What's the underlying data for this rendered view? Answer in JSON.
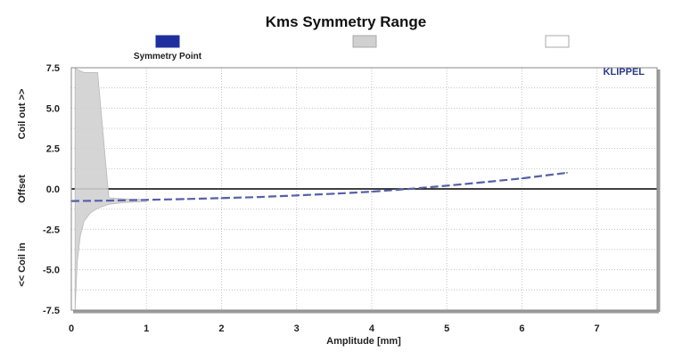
{
  "chart_data": {
    "type": "line",
    "title": "Kms Symmetry Range",
    "xlabel": "Amplitude [mm]",
    "ylabel_top": "Coil out >>",
    "ylabel_mid": "Offset",
    "ylabel_bottom": "<< Coil in",
    "brand": "KLIPPEL",
    "xlim": [
      0,
      7.8
    ],
    "ylim": [
      -7.5,
      7.5
    ],
    "x_ticks": [
      "0",
      "1",
      "2",
      "3",
      "4",
      "5",
      "6",
      "7"
    ],
    "y_ticks": [
      "7.5",
      "5.0",
      "2.5",
      "0.0",
      "-2.5",
      "-5.0",
      "-7.5"
    ],
    "grid": true,
    "legend_position": "top-center",
    "legend": [
      {
        "name": "Symmetry Point",
        "color": "#1f2f9e",
        "kind": "solid"
      },
      {
        "name": "",
        "color": "#d0d0d0",
        "kind": "band"
      },
      {
        "name": "",
        "color": "#ffffff",
        "kind": "empty"
      }
    ],
    "series": [
      {
        "name": "Symmetry Point",
        "color": "#5560a8",
        "x": [
          0.0,
          0.5,
          1.0,
          1.5,
          2.0,
          2.5,
          3.0,
          3.5,
          4.0,
          4.5,
          5.0,
          5.5,
          6.0,
          6.6
        ],
        "y": [
          -0.75,
          -0.72,
          -0.68,
          -0.63,
          -0.57,
          -0.5,
          -0.4,
          -0.3,
          -0.17,
          0.0,
          0.2,
          0.42,
          0.65,
          1.0
        ]
      }
    ],
    "band": {
      "color": "#d0d0d0",
      "x": [
        0.05,
        0.08,
        0.12,
        0.17,
        0.25,
        0.35,
        0.5,
        0.7,
        1.0
      ],
      "upper": [
        7.5,
        7.4,
        7.3,
        7.2,
        7.2,
        7.2,
        -0.55,
        -0.62,
        -0.66
      ],
      "lower": [
        -7.5,
        -4.5,
        -2.9,
        -2.0,
        -1.5,
        -1.2,
        -0.95,
        -0.85,
        -0.78
      ]
    }
  }
}
